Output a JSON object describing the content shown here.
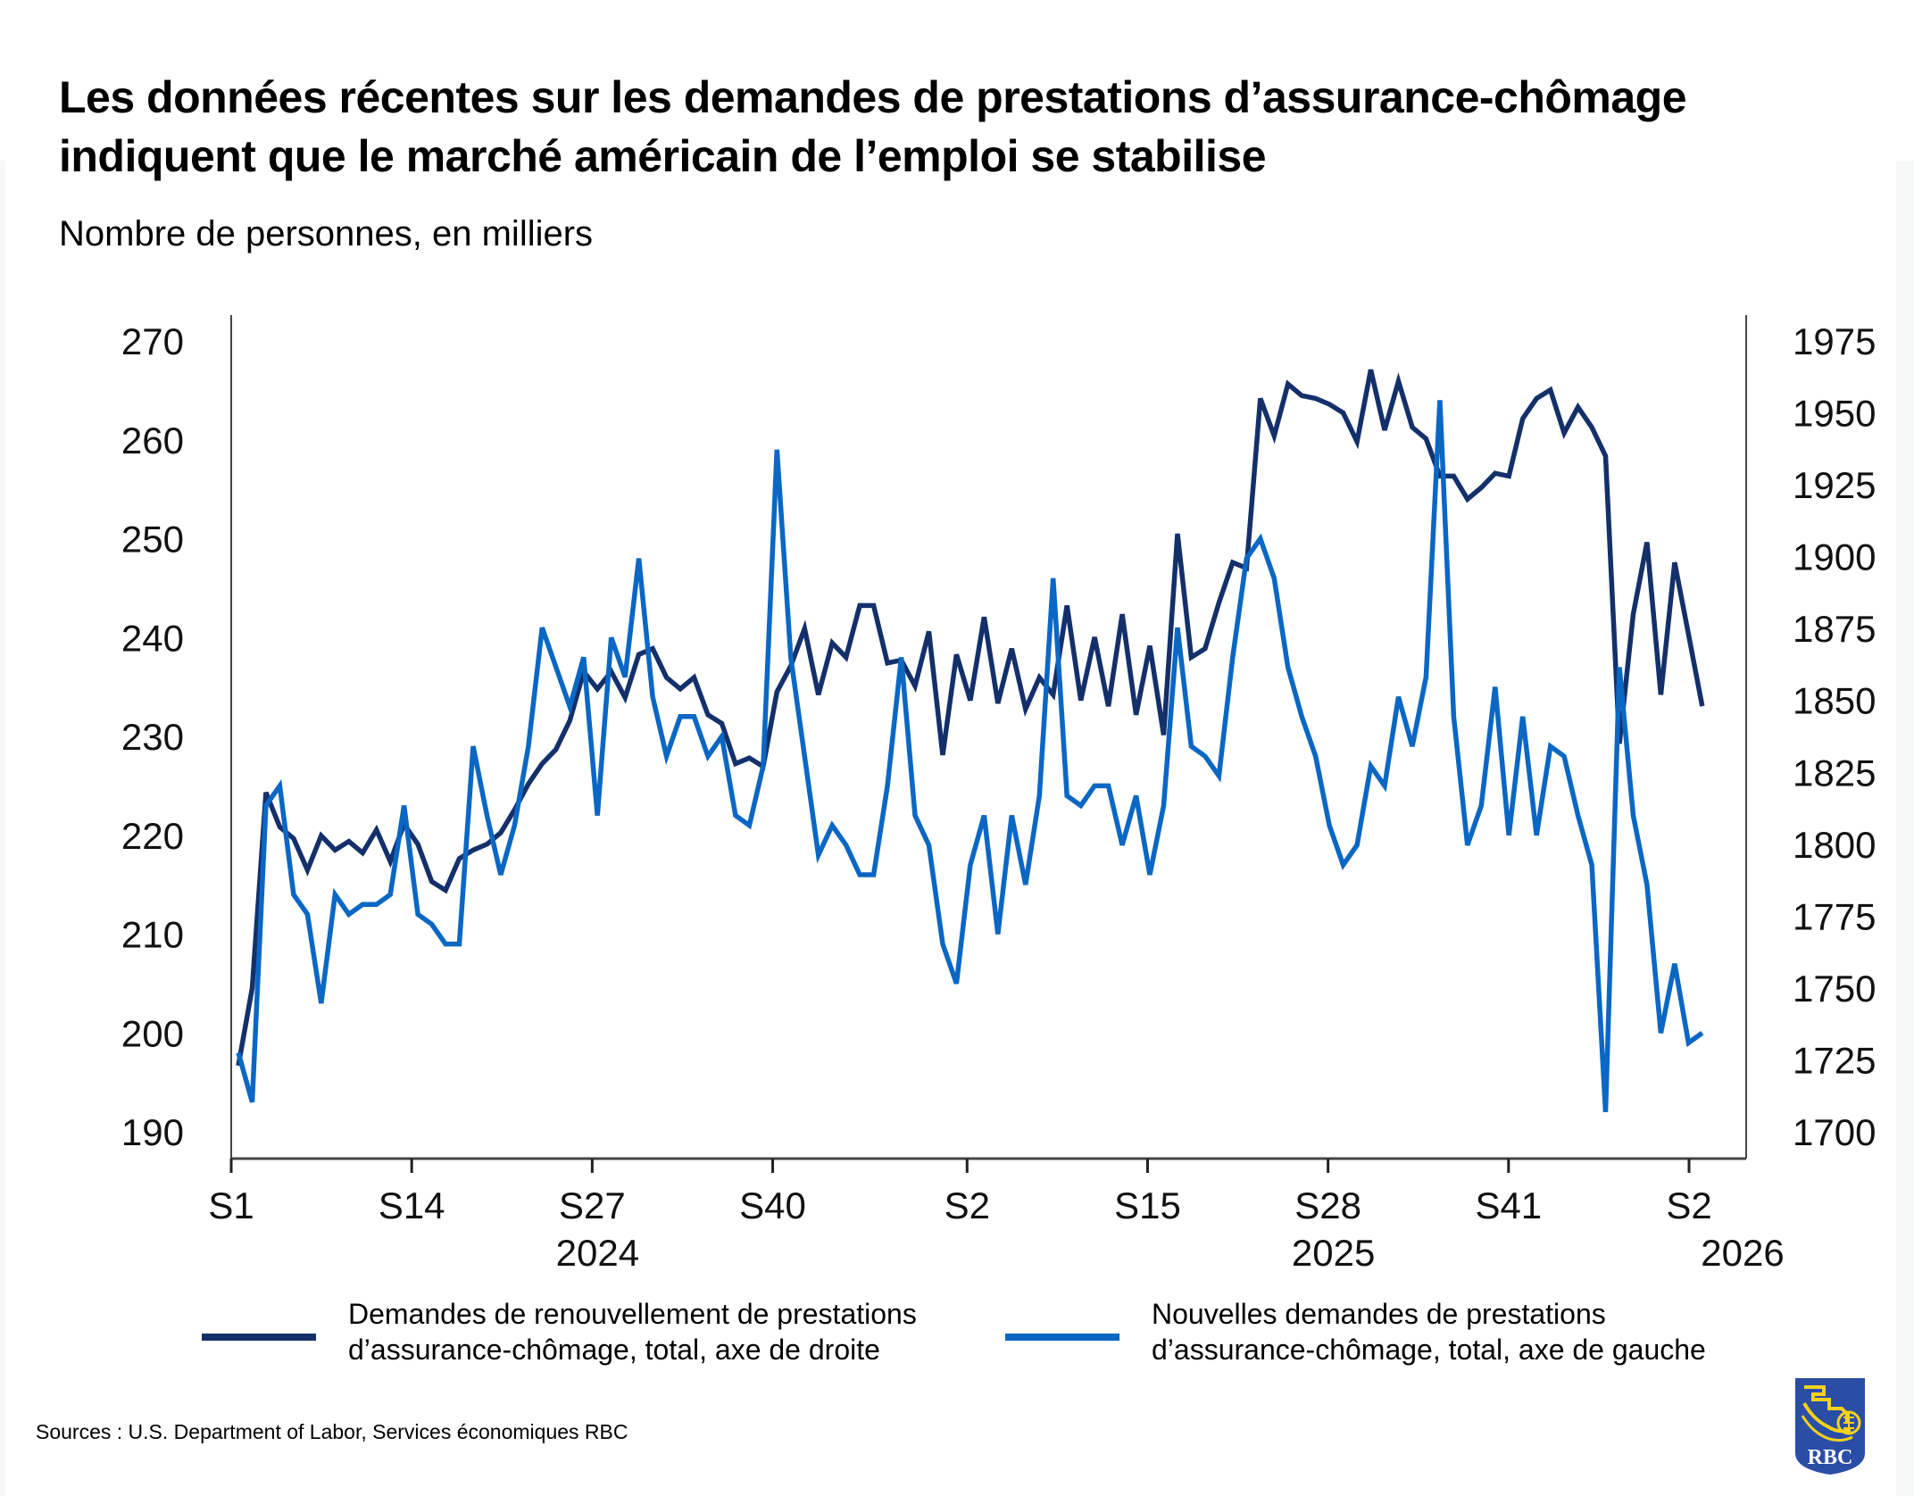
{
  "title": "Les données récentes sur les demandes de prestations d’assurance-chômage indiquent que le marché américain de l’emploi se stabilise",
  "subtitle": "Nombre de personnes, en milliers",
  "sources": "Sources : U.S. Department of Labor, Services économiques RBC",
  "logo_text": "RBC",
  "colors": {
    "continuing": "#14306b",
    "initial": "#0a67c4",
    "logo_bg": "#2a4ea6",
    "logo_fg": "#f5d21a"
  },
  "legend": [
    {
      "series": "continuing",
      "label": "Demandes de renouvellement de prestations d’assurance-chômage, total, axe de droite"
    },
    {
      "series": "initial",
      "label": "Nouvelles demandes de prestations d’assurance-chômage, total, axe de gauche"
    }
  ],
  "chart_data": {
    "type": "line",
    "title": "Les données récentes sur les demandes de prestations d’assurance-chômage indiquent que le marché américain de l’emploi se stabilise",
    "subtitle": "Nombre de personnes, en milliers",
    "xlabel": "",
    "x_unit": "week",
    "x_ticks": [
      {
        "index": 0,
        "label": "S1",
        "year": ""
      },
      {
        "index": 13,
        "label": "S14",
        "year": ""
      },
      {
        "index": 26,
        "label": "S27",
        "year": "2024"
      },
      {
        "index": 39,
        "label": "S40",
        "year": ""
      },
      {
        "index": 53,
        "label": "S2",
        "year": ""
      },
      {
        "index": 66,
        "label": "S15",
        "year": ""
      },
      {
        "index": 79,
        "label": "S28",
        "year": "2025"
      },
      {
        "index": 92,
        "label": "S41",
        "year": ""
      },
      {
        "index": 105,
        "label": "S2",
        "year": "2026"
      }
    ],
    "y_left": {
      "label": "axe de gauche",
      "range": [
        190,
        270
      ],
      "ticks": [
        190,
        200,
        210,
        220,
        230,
        240,
        250,
        260,
        270
      ]
    },
    "y_right": {
      "label": "axe de droite",
      "range": [
        1700,
        1975
      ],
      "ticks": [
        1700,
        1725,
        1750,
        1775,
        1800,
        1825,
        1850,
        1875,
        1900,
        1925,
        1950,
        1975
      ]
    },
    "grid": false,
    "legend_position": "bottom",
    "series": [
      {
        "name": "Demandes de renouvellement de prestations d’assurance-chômage, total, axe de droite",
        "key": "continuing",
        "axis": "right",
        "values": [
          1723,
          1750,
          1818,
          1806,
          1802,
          1791,
          1803,
          1798,
          1801,
          1797,
          1805,
          1794,
          1807,
          1800,
          1787,
          1784,
          1795,
          1798,
          1800,
          1804,
          1812,
          1821,
          1828,
          1833,
          1843,
          1860,
          1854,
          1860,
          1851,
          1866,
          1868,
          1858,
          1854,
          1858,
          1845,
          1842,
          1828,
          1830,
          1827,
          1853,
          1862,
          1875,
          1852,
          1870,
          1865,
          1883,
          1883,
          1863,
          1864,
          1855,
          1874,
          1831,
          1866,
          1850,
          1879,
          1849,
          1868,
          1847,
          1858,
          1852,
          1883,
          1850,
          1872,
          1848,
          1880,
          1845,
          1869,
          1838,
          1908,
          1865,
          1868,
          1884,
          1898,
          1896,
          1955,
          1942,
          1960,
          1956,
          1955,
          1953,
          1950,
          1940,
          1965,
          1944,
          1961,
          1945,
          1941,
          1928,
          1928,
          1920,
          1924,
          1929,
          1928,
          1948,
          1955,
          1958,
          1943,
          1952,
          1945,
          1935,
          1835,
          1880,
          1905,
          1852,
          1898,
          1873,
          1848
        ]
      },
      {
        "name": "Nouvelles demandes de prestations d’assurance-chômage, total, axe de gauche",
        "key": "initial",
        "axis": "left",
        "values": [
          198,
          193,
          223,
          225,
          214,
          212,
          203,
          214,
          212,
          213,
          213,
          214,
          223,
          212,
          211,
          209,
          209,
          229,
          222,
          216,
          221,
          229,
          241,
          237,
          233,
          238,
          222,
          240,
          236,
          248,
          234,
          228,
          232,
          232,
          228,
          230,
          222,
          221,
          227,
          259,
          238,
          228,
          218,
          221,
          219,
          216,
          216,
          225,
          238,
          222,
          219,
          209,
          205,
          217,
          222,
          210,
          222,
          215,
          224,
          246,
          224,
          223,
          225,
          225,
          219,
          224,
          216,
          223,
          241,
          229,
          228,
          226,
          238,
          248,
          250,
          246,
          237,
          232,
          228,
          221,
          217,
          219,
          227,
          225,
          234,
          229,
          236,
          264,
          232,
          219,
          223,
          235,
          220,
          232,
          220,
          229,
          228,
          222,
          217,
          192,
          237,
          222,
          215,
          200,
          207,
          199,
          200
        ]
      }
    ]
  }
}
